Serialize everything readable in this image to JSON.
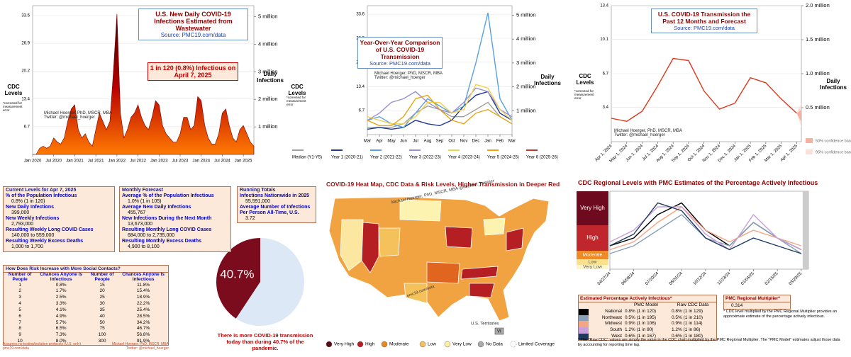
{
  "chart_data": [
    {
      "type": "area",
      "title": "U.S. New Daily COVID-19 Infections Estimated from Wastewater",
      "source": "Source: PMC19.com/data",
      "annotation": "1 in 120 (0.8%) Infectious on April 7, 2025",
      "credit": [
        "Michael Hoerger, PhD, MSCR, MBA",
        "Twitter: @michael_hoerger"
      ],
      "ylabel": "CDC Levels",
      "ylabel_note": "*corrected for measurement error",
      "y2label": "Daily Infections",
      "x": [
        "2020-01",
        "2020-02",
        "2020-03",
        "2020-04",
        "2020-05",
        "2020-06",
        "2020-07",
        "2020-08",
        "2020-09",
        "2020-10",
        "2020-11",
        "2020-12",
        "2021-01",
        "2021-02",
        "2021-03",
        "2021-04",
        "2021-05",
        "2021-06",
        "2021-07",
        "2021-08",
        "2021-09",
        "2021-10",
        "2021-11",
        "2021-12",
        "2022-01",
        "2022-02",
        "2022-03",
        "2022-04",
        "2022-05",
        "2022-06",
        "2022-07",
        "2022-08",
        "2022-09",
        "2022-10",
        "2022-11",
        "2022-12",
        "2023-01",
        "2023-02",
        "2023-03",
        "2023-04",
        "2023-05",
        "2023-06",
        "2023-07",
        "2023-08",
        "2023-09",
        "2023-10",
        "2023-11",
        "2023-12",
        "2024-01",
        "2024-02",
        "2024-03",
        "2024-04",
        "2024-05",
        "2024-06",
        "2024-07",
        "2024-08",
        "2024-09",
        "2024-10",
        "2024-11",
        "2024-12",
        "2025-01",
        "2025-02",
        "2025-03",
        "2025-04"
      ],
      "values": [
        0,
        0,
        1.5,
        2,
        1.5,
        2,
        4,
        3,
        2.5,
        4,
        8,
        11,
        12,
        6,
        4,
        5,
        3,
        2,
        6,
        10,
        8,
        6,
        8,
        20,
        34,
        10,
        4,
        6,
        9,
        10,
        12,
        9,
        7,
        6,
        9,
        13,
        12,
        7,
        5,
        4,
        3,
        3,
        5,
        9,
        9,
        6,
        7,
        14,
        13,
        7,
        4,
        2.5,
        2.5,
        5,
        10,
        11,
        7,
        4,
        3,
        6,
        7,
        5,
        3,
        2
      ],
      "color": "#7a0000",
      "xticks": [
        {
          "value": "2020-01",
          "label": "Jan 2020"
        },
        {
          "value": "2020-07",
          "label": "Jul 2020"
        },
        {
          "value": "2021-01",
          "label": "Jan 2021"
        },
        {
          "value": "2021-07",
          "label": "Jul 2021"
        },
        {
          "value": "2022-01",
          "label": "Jan 2022"
        },
        {
          "value": "2022-07",
          "label": "Jul 2022"
        },
        {
          "value": "2023-01",
          "label": "Jan 2023"
        },
        {
          "value": "2023-07",
          "label": "Jul 2023"
        },
        {
          "value": "2024-01",
          "label": "Jan 2024"
        },
        {
          "value": "2024-07",
          "label": "Jul 2024"
        },
        {
          "value": "2025-01",
          "label": "Jan 2025"
        }
      ],
      "ylim": [
        0,
        36
      ],
      "yticks": [
        6.7,
        13.4,
        20.2,
        26.9,
        33.6
      ],
      "y2lim": [
        0,
        5400000
      ],
      "y2ticks": [
        {
          "value": 1000000,
          "label": "1 million"
        },
        {
          "value": 2000000,
          "label": "2 million"
        },
        {
          "value": 3000000,
          "label": "3 million"
        },
        {
          "value": 4000000,
          "label": "4 million"
        },
        {
          "value": 5000000,
          "label": "5 million"
        }
      ],
      "grid": true
    },
    {
      "type": "line",
      "title": "Year-Over-Year Comparison of U.S. COVID-19 Transmission",
      "source": "Source: PMC19.com/data",
      "credit": [
        "Michael Hoerger, PhD, MSCR, MBA",
        "Twitter: @michael_hoerger"
      ],
      "ylabel": "CDC Levels",
      "ylabel_note": "*corrected for measurement error",
      "y2label": "Daily Infections",
      "categories": [
        "Mar",
        "Apr",
        "May",
        "Jun",
        "Jul",
        "Aug",
        "Sep",
        "Oct",
        "Nov",
        "Dec",
        "Jan",
        "Feb",
        "Mar"
      ],
      "series": [
        {
          "name": "Median (Y1-Y5)",
          "color": "#a0a0a0",
          "values": [
            2,
            2,
            2,
            3,
            6,
            8,
            7,
            5,
            5,
            7,
            9,
            5,
            3
          ]
        },
        {
          "name": "Year 1 (2020-21)",
          "color": "#1f3a93",
          "values": [
            1.5,
            2,
            1.5,
            2,
            4,
            3,
            2.5,
            4,
            8,
            11,
            12,
            6,
            4
          ]
        },
        {
          "name": "Year 2 (2021-22)",
          "color": "#5aa0e0",
          "values": [
            4,
            5,
            3,
            2,
            6,
            10,
            8,
            6,
            8,
            20,
            34,
            10,
            4
          ]
        },
        {
          "name": "Year 3 (2022-23)",
          "color": "#9b8fd0",
          "values": [
            4,
            6,
            9,
            10,
            12,
            9,
            7,
            6,
            9,
            13,
            12,
            7,
            5
          ]
        },
        {
          "name": "Year 4 (2023-24)",
          "color": "#f2d24b",
          "values": [
            5,
            4,
            3,
            3,
            5,
            9,
            9,
            6,
            7,
            14,
            13,
            7,
            4
          ]
        },
        {
          "name": "Year 5 (2024-25)",
          "color": "#e6a817",
          "values": [
            4,
            2.5,
            2.5,
            5,
            10,
            11,
            7,
            4,
            3,
            6,
            7,
            5,
            3
          ]
        },
        {
          "name": "Year 6 (2025-26)",
          "color": "#c0392b",
          "values": [
            2.8,
            null,
            null,
            null,
            null,
            null,
            null,
            null,
            null,
            null,
            null,
            null,
            null
          ]
        }
      ],
      "ylim": [
        0,
        36
      ],
      "yticks": [
        6.7,
        13.4,
        20.2,
        26.9,
        33.6
      ],
      "y2lim": [
        0,
        5400000
      ],
      "y2ticks": [
        {
          "value": 1000000,
          "label": "1 million"
        },
        {
          "value": 2000000,
          "label": "2 million"
        },
        {
          "value": 3000000,
          "label": "3 million"
        },
        {
          "value": 4000000,
          "label": "4 million"
        },
        {
          "value": 5000000,
          "label": "5 million"
        }
      ],
      "grid": true
    },
    {
      "type": "line",
      "title": "U.S. COVID-19 Transmission the Past 12 Months and Forecast",
      "source": "Source: PMC19.com/data",
      "credit": [
        "Michael Hoerger, PhD, MSCR, MBA",
        "Twitter: @michael_hoerger"
      ],
      "ylabel": "CDC Levels",
      "ylabel_note": "*corrected for measurement error",
      "y2label": "Daily Infections",
      "legend": [
        "50% confidence band",
        "95% confidence band"
      ],
      "categories": [
        "Apr 1, 2024",
        "May 1, 2024",
        "Jun 1, 2024",
        "Jul 1, 2024",
        "Aug 1, 2024",
        "Sep 1, 2024",
        "Oct 1, 2024",
        "Nov 1, 2024",
        "Dec 1, 2024",
        "Jan 1, 2025",
        "Feb 1, 2025",
        "Mar 1, 2025",
        "Apr 1, 2025"
      ],
      "values": [
        2.3,
        2.0,
        3.0,
        5.5,
        8.2,
        8.0,
        5.0,
        3.2,
        3.8,
        6.3,
        5.8,
        4.2,
        2.8
      ],
      "color": "#d9381e",
      "ylim": [
        0,
        13.4
      ],
      "yticks": [
        3.4,
        6.7,
        10.1,
        13.4
      ],
      "y2lim": [
        0,
        2000000
      ],
      "y2ticks": [
        {
          "value": 500000,
          "label": "0.5 million"
        },
        {
          "value": 1000000,
          "label": "1.0 million"
        },
        {
          "value": 1500000,
          "label": "1.5 million"
        },
        {
          "value": 2000000,
          "label": "2.0 million"
        }
      ],
      "grid": true
    },
    {
      "type": "pie",
      "values": [
        40.7,
        59.3
      ],
      "value_labels": [
        "40.7%",
        null
      ],
      "colors": [
        "#7b0c1e",
        "#dce8f5"
      ],
      "caption": "There is more COVID-19 transmission today than during 40.7% of the pandemic."
    },
    {
      "type": "line",
      "title": "CDC Regional Levels with PMC Estimates of the Percentage Actively Infectious",
      "levels": [
        "Very High",
        "High",
        "Moderate",
        "Low",
        "Very Low"
      ],
      "categories": [
        "04/27/24",
        "06/08/24",
        "07/20/24",
        "08/31/24",
        "10/12/24",
        "11/23/24",
        "01/04/25",
        "02/15/25",
        "03/29/25"
      ],
      "series": [
        {
          "name": "National",
          "color": "#000000",
          "values": [
            3,
            4,
            7,
            8.5,
            5,
            3,
            6,
            4,
            2.5
          ]
        },
        {
          "name": "Northeast",
          "color": "#8aa0b8",
          "values": [
            2,
            3,
            5,
            7,
            4,
            3,
            6,
            4,
            2
          ]
        },
        {
          "name": "Midwest",
          "color": "#f4a582",
          "values": [
            2.5,
            3.5,
            6,
            8,
            5,
            3.5,
            5,
            4,
            3
          ]
        },
        {
          "name": "South",
          "color": "#c9a0dc",
          "values": [
            3.5,
            5,
            8,
            8,
            4.5,
            2.5,
            7,
            4,
            2.5
          ]
        },
        {
          "name": "West",
          "color": "#1f3a5f",
          "values": [
            3,
            4.5,
            8.5,
            7.5,
            4,
            2.5,
            4,
            3,
            2
          ]
        }
      ],
      "ylim": [
        0,
        10
      ],
      "grid": true
    }
  ],
  "current_levels": {
    "title": "Current Levels for Apr 7, 2025",
    "items": [
      {
        "label": "% of the Population Infectious",
        "value": "0.8% (1 in 120)"
      },
      {
        "label": "New Daily Infections",
        "value": "399,000"
      },
      {
        "label": "New Weekly Infections",
        "value": "2,793,000"
      },
      {
        "label": "Resulting Weekly Long COVID Cases",
        "value": "140,000 to 559,000"
      },
      {
        "label": "Resulting Weekly Excess Deaths",
        "value": "1,000 to 1,700"
      }
    ]
  },
  "monthly_forecast": {
    "title": "Monthly Forecast",
    "items": [
      {
        "label": "Average % of the Population Infectious",
        "value": "1.0% (1 in 105)"
      },
      {
        "label": "Average New Daily Infections",
        "value": "455,767"
      },
      {
        "label": "New Infections During the Next Month",
        "value": "13,673,000"
      },
      {
        "label": "Resulting Monthly Long COVID Cases",
        "value": "684,000 to 2,735,000"
      },
      {
        "label": "Resulting Monthly Excess Deaths",
        "value": "4,900 to 8,100"
      }
    ]
  },
  "running_totals": {
    "title": "Running Totals",
    "items": [
      {
        "label": "Infections Nationwide in 2025",
        "value": "55,591,000"
      },
      {
        "label": "Average Number of Infections Per Person All-Time, U.S.",
        "value": "3.72"
      }
    ]
  },
  "risk_table": {
    "title": "How Does Risk Increase with More Social Contacts?",
    "columns": [
      "Number of People",
      "Chances Anyone Is Infectious",
      "Number of People",
      "Chances Anyone Is Infectious"
    ],
    "rows": [
      [
        1,
        "0.8%",
        15,
        "11.8%"
      ],
      [
        2,
        "1.7%",
        20,
        "15.4%"
      ],
      [
        3,
        "2.5%",
        25,
        "18.9%"
      ],
      [
        4,
        "3.3%",
        30,
        "22.2%"
      ],
      [
        5,
        "4.1%",
        35,
        "25.4%"
      ],
      [
        6,
        "4.9%",
        40,
        "28.5%"
      ],
      [
        7,
        "5.7%",
        50,
        "34.2%"
      ],
      [
        8,
        "6.5%",
        75,
        "46.7%"
      ],
      [
        9,
        "7.3%",
        100,
        "56.8%"
      ],
      [
        10,
        "8.0%",
        300,
        "91.9%"
      ]
    ],
    "notes": [
      "Assumes no testing/isolation protocols (U.S. only)",
      "pmc19.com/data",
      "Michael Hoerger, PhD, MSCR, MBA",
      "Twitter: @michael_hoerger"
    ]
  },
  "map": {
    "title": "COVID-19 Heat Map, CDC Data & Risk Levels, Higher Transmission in Deeper Red",
    "watermark": "Michael Hoerger, PhD, MSCR, MBA @michael_hoerger",
    "source": "pmc19.com/data",
    "territories_label": "U.S. Territories",
    "territory": "VI",
    "legend": [
      "Very High",
      "High",
      "Moderate",
      "Low",
      "Very Low",
      "No Data",
      "Limited Coverage"
    ]
  },
  "regional_table": {
    "title": "Estimated Percentage Actively Infectious*",
    "columns": [
      "PMC Model",
      "Raw CDC Data"
    ],
    "rows": [
      [
        "National",
        "0.8% (1 in 120)",
        "0.8% (1 in 129)"
      ],
      [
        "Northeast",
        "0.5% (1 in 195)",
        "0.5% (1 in 210)"
      ],
      [
        "Midwest",
        "0.9% (1 in 106)",
        "0.9% (1 in 114)"
      ],
      [
        "South",
        "1.2% (1 in 80)",
        "1.2% (1 in 86)"
      ],
      [
        "West",
        "0.6% (1 in 167)",
        "0.6% (1 in 180)"
      ]
    ],
    "multiplier_title": "PMC Regional Multiplier*",
    "multiplier": 0.314,
    "note": "* CDC level multiplied by the PMC Regional Multiplier provides an approximate estimate of the percentage actively infectious.",
    "footnote": "* The \"Raw CDC\" values are simply the value in the CDC chart multiplied by the PMC Regional Multiplier. The \"PMC Model\" estimates adjust those data by accounting for reporting time lag."
  }
}
